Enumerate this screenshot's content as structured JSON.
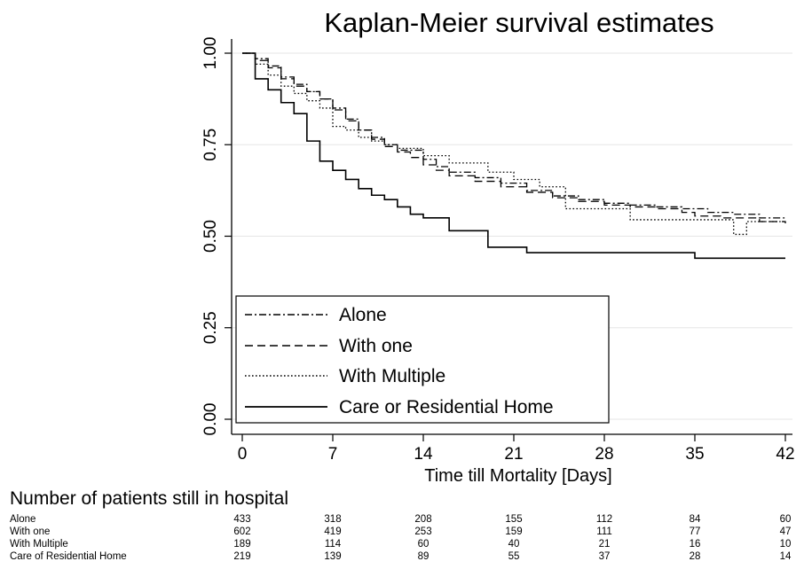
{
  "chart_data": {
    "type": "line",
    "title": "Kaplan-Meier survival estimates",
    "xlabel": "Time till Mortality [Days]",
    "ylabel": "",
    "xlim": [
      0,
      42
    ],
    "ylim": [
      0,
      1
    ],
    "xticks": [
      0,
      7,
      14,
      21,
      28,
      35,
      42
    ],
    "xtick_labels": [
      "0",
      "7",
      "14",
      "21",
      "28",
      "35",
      "42"
    ],
    "yticks": [
      0,
      0.25,
      0.5,
      0.75,
      1
    ],
    "ytick_labels": [
      "0.00",
      "0.25",
      "0.50",
      "0.75",
      "1.00"
    ],
    "grid": true,
    "legend_position": "bottom-left",
    "step": true,
    "series": [
      {
        "name": "Alone",
        "line_style": "dash-dot",
        "x": [
          0,
          1,
          2,
          3,
          4,
          5,
          6,
          7,
          8,
          9,
          10,
          11,
          12,
          14,
          15,
          16,
          18,
          20,
          22,
          24,
          26,
          28,
          30,
          32,
          34,
          36,
          38,
          40,
          42
        ],
        "y": [
          1.0,
          0.985,
          0.965,
          0.935,
          0.915,
          0.895,
          0.875,
          0.85,
          0.82,
          0.79,
          0.77,
          0.75,
          0.735,
          0.71,
          0.69,
          0.675,
          0.66,
          0.645,
          0.625,
          0.61,
          0.6,
          0.59,
          0.585,
          0.58,
          0.575,
          0.565,
          0.56,
          0.55,
          0.545
        ]
      },
      {
        "name": "With one",
        "line_style": "dashed",
        "x": [
          0,
          1,
          2,
          3,
          4,
          5,
          6,
          7,
          8,
          9,
          10,
          11,
          12,
          13,
          14,
          15,
          16,
          18,
          20,
          22,
          24,
          26,
          28,
          30,
          32,
          34,
          35,
          37,
          40,
          42
        ],
        "y": [
          1.0,
          0.98,
          0.96,
          0.93,
          0.91,
          0.895,
          0.875,
          0.845,
          0.815,
          0.79,
          0.765,
          0.745,
          0.73,
          0.715,
          0.695,
          0.68,
          0.665,
          0.65,
          0.635,
          0.62,
          0.605,
          0.595,
          0.585,
          0.58,
          0.575,
          0.565,
          0.555,
          0.55,
          0.54,
          0.535
        ]
      },
      {
        "name": "With Multiple",
        "line_style": "dotted",
        "x": [
          0,
          1,
          2,
          3,
          4,
          5,
          6,
          7,
          8,
          9,
          10,
          11,
          12,
          14,
          16,
          19,
          21,
          23,
          25,
          29,
          30,
          35,
          38,
          39,
          42
        ],
        "y": [
          1.0,
          0.97,
          0.94,
          0.91,
          0.89,
          0.87,
          0.85,
          0.8,
          0.79,
          0.77,
          0.76,
          0.75,
          0.74,
          0.72,
          0.7,
          0.675,
          0.655,
          0.635,
          0.575,
          0.575,
          0.545,
          0.545,
          0.505,
          0.54,
          0.54
        ]
      },
      {
        "name": "Care or Residential Home",
        "line_style": "solid",
        "x": [
          0,
          1,
          2,
          3,
          4,
          5,
          6,
          7,
          8,
          9,
          10,
          11,
          12,
          13,
          14,
          16,
          19,
          22,
          35,
          42
        ],
        "y": [
          1.0,
          0.93,
          0.9,
          0.865,
          0.835,
          0.76,
          0.705,
          0.68,
          0.655,
          0.63,
          0.612,
          0.6,
          0.58,
          0.56,
          0.55,
          0.515,
          0.47,
          0.455,
          0.44,
          0.44
        ]
      }
    ]
  },
  "risk_table": {
    "title": "Number of patients still in hospital",
    "rows": [
      {
        "label": "Alone",
        "values": [
          "433",
          "318",
          "208",
          "155",
          "112",
          "84",
          "60"
        ]
      },
      {
        "label": "With one",
        "values": [
          "602",
          "419",
          "253",
          "159",
          "111",
          "77",
          "47"
        ]
      },
      {
        "label": "With Multiple",
        "values": [
          "189",
          "114",
          "60",
          "40",
          "21",
          "16",
          "10"
        ]
      },
      {
        "label": "Care of Residential Home",
        "values": [
          "219",
          "139",
          "89",
          "55",
          "37",
          "28",
          "14"
        ]
      }
    ]
  }
}
